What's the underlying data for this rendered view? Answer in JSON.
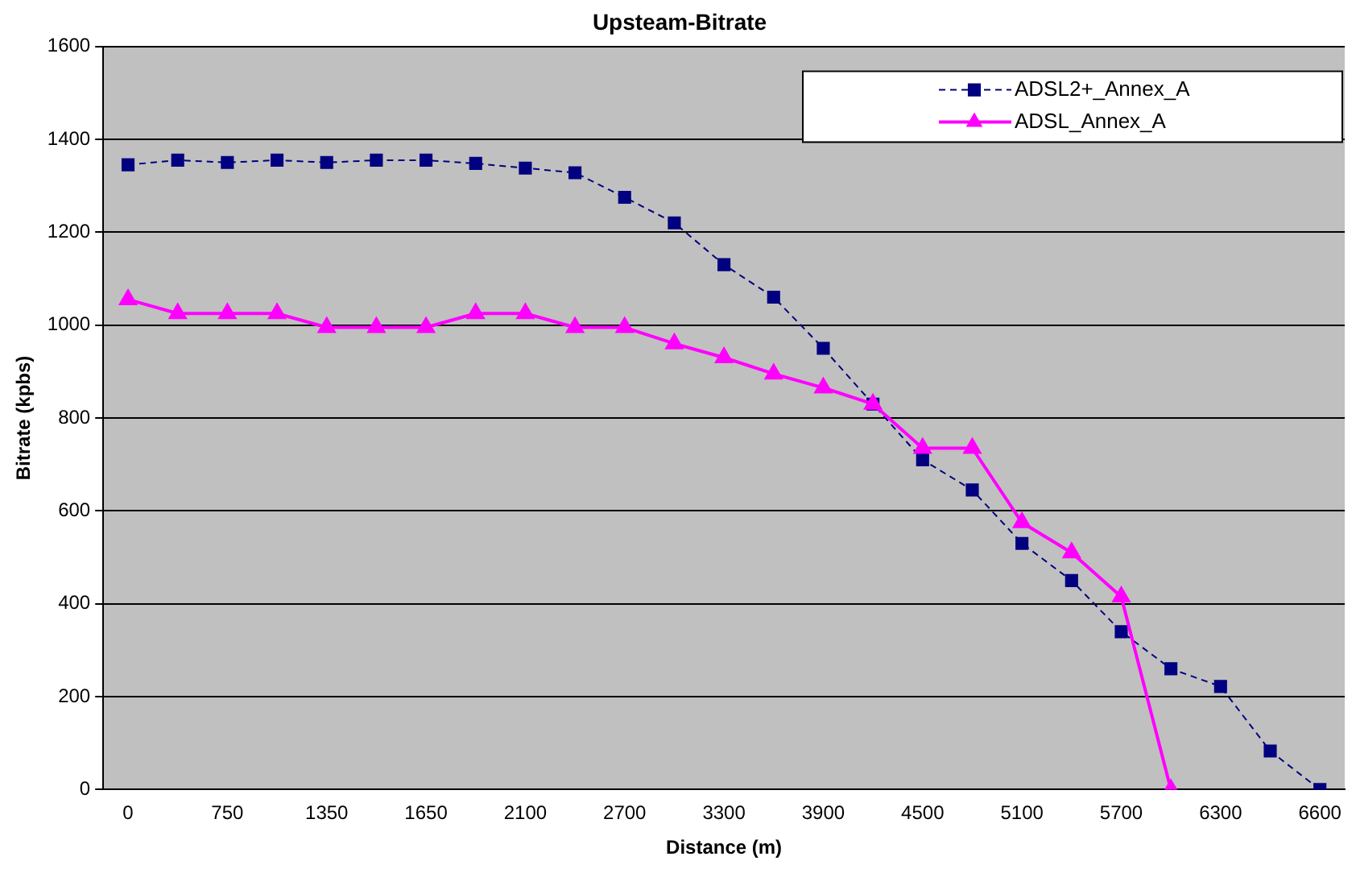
{
  "chart_data": {
    "type": "line",
    "title": "Upsteam-Bitrate",
    "xlabel": "Distance (m)",
    "ylabel": "Bitrate (kpbs)",
    "categories": [
      "0",
      null,
      "750",
      null,
      "1350",
      null,
      "1650",
      null,
      "2100",
      null,
      "2700",
      null,
      "3300",
      null,
      "3900",
      null,
      "4500",
      null,
      "5100",
      null,
      "5700",
      null,
      "6300",
      null,
      "6600"
    ],
    "series": [
      {
        "name": "ADSL2+_Annex_A",
        "color": "#000080",
        "marker": "square",
        "line_style": "dashed",
        "values": [
          1345,
          1355,
          1350,
          1355,
          1350,
          1355,
          1355,
          1348,
          1338,
          1328,
          1275,
          1220,
          1130,
          1060,
          950,
          830,
          710,
          645,
          530,
          450,
          340,
          260,
          222,
          83,
          0
        ]
      },
      {
        "name": "ADSL_Annex_A",
        "color": "#ff00ff",
        "marker": "triangle",
        "line_style": "solid",
        "values": [
          1055,
          1025,
          1025,
          1025,
          995,
          995,
          995,
          1025,
          1025,
          995,
          995,
          960,
          930,
          895,
          865,
          830,
          735,
          735,
          575,
          510,
          415,
          0,
          null,
          null,
          null
        ]
      }
    ],
    "ylim": [
      0,
      1600
    ],
    "yticks": [
      0,
      200,
      400,
      600,
      800,
      1000,
      1200,
      1400,
      1600
    ],
    "grid": "y",
    "legend": "top right"
  }
}
